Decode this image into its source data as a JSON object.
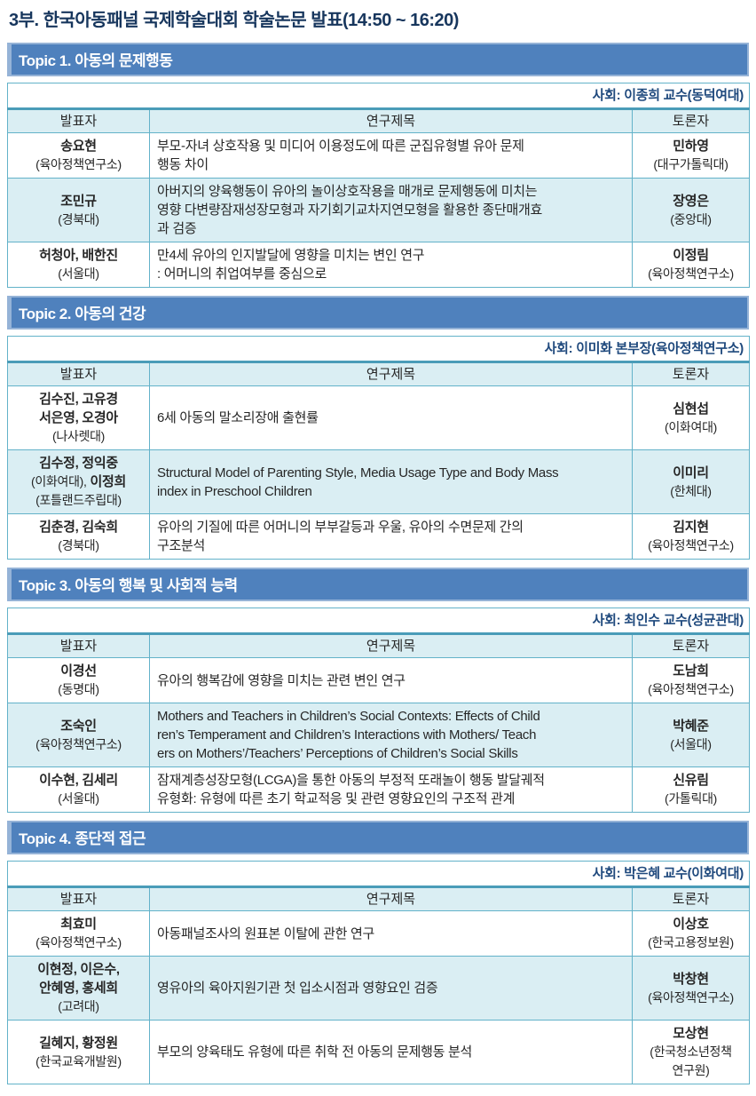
{
  "page_title": "3부. 한국아동패널 국제학술대회 학술논문 발표(14:50 ~ 16:20)",
  "colors": {
    "title_text": "#17365d",
    "topic_bar_bg": "#4f81bd",
    "topic_bar_border": "#95b3d7",
    "table_border": "#63b2c9",
    "thick_rule": "#4a9cb8",
    "band_bg": "#daeef3",
    "moderator_text": "#1f497d",
    "body_text": "#262626"
  },
  "columns": {
    "presenter": "발표자",
    "title": "연구제목",
    "discussant": "토론자"
  },
  "sections": [
    {
      "topic": "Topic 1. 아동의 문제행동",
      "moderator": "사회: 이종희 교수(동덕여대)",
      "rows": [
        {
          "presenter": [
            [
              {
                "t": "송요현",
                "b": true
              }
            ],
            [
              {
                "t": "(육아정책연구소)",
                "b": false
              }
            ]
          ],
          "title": "부모-자녀 상호작용 및 미디어 이용정도에 따른 군집유형별 유아 문제\n행동 차이",
          "discussant": [
            [
              {
                "t": "민하영",
                "b": true
              }
            ],
            [
              {
                "t": "(대구가톨릭대)",
                "b": false
              }
            ]
          ]
        },
        {
          "presenter": [
            [
              {
                "t": "조민규",
                "b": true
              }
            ],
            [
              {
                "t": "(경북대)",
                "b": false
              }
            ]
          ],
          "title": "아버지의 양육행동이 유아의 놀이상호작용을 매개로 문제행동에 미치는\n영향 다변량잠재성장모형과 자기회기교차지연모형을 활용한 종단매개효\n과 검증",
          "discussant": [
            [
              {
                "t": "장영은",
                "b": true
              }
            ],
            [
              {
                "t": "(중앙대)",
                "b": false
              }
            ]
          ]
        },
        {
          "presenter": [
            [
              {
                "t": "허청아, 배한진",
                "b": true
              }
            ],
            [
              {
                "t": "(서울대)",
                "b": false
              }
            ]
          ],
          "title": "만4세 유아의 인지발달에 영향을 미치는 변인 연구\n: 어머니의 취업여부를 중심으로",
          "discussant": [
            [
              {
                "t": "이정림",
                "b": true
              }
            ],
            [
              {
                "t": "(육아정책연구소)",
                "b": false
              }
            ]
          ]
        }
      ]
    },
    {
      "topic": "Topic 2. 아동의 건강",
      "moderator": "사회: 이미화 본부장(육아정책연구소)",
      "rows": [
        {
          "presenter": [
            [
              {
                "t": "김수진, 고유경",
                "b": true
              }
            ],
            [
              {
                "t": "서은영, 오경아",
                "b": true
              }
            ],
            [
              {
                "t": "(나사렛대)",
                "b": false
              }
            ]
          ],
          "title": "6세 아동의 말소리장애 출현률",
          "discussant": [
            [
              {
                "t": "심현섭",
                "b": true
              }
            ],
            [
              {
                "t": "(이화여대)",
                "b": false
              }
            ]
          ]
        },
        {
          "presenter": [
            [
              {
                "t": "김수정, 정익중",
                "b": true
              }
            ],
            [
              {
                "t": "(이화여대),",
                "b": false
              },
              {
                "t": " 이정희",
                "b": true
              }
            ],
            [
              {
                "t": "(포틀랜드주립대)",
                "b": false
              }
            ]
          ],
          "title": "Structural Model of Parenting Style, Media Usage Type and Body Mass\nindex in Preschool Children",
          "discussant": [
            [
              {
                "t": "이미리",
                "b": true
              }
            ],
            [
              {
                "t": "(한체대)",
                "b": false
              }
            ]
          ]
        },
        {
          "presenter": [
            [
              {
                "t": "김춘경, 김숙희",
                "b": true
              }
            ],
            [
              {
                "t": "(경북대)",
                "b": false
              }
            ]
          ],
          "title": "유아의 기질에 따른 어머니의 부부갈등과 우울, 유아의 수면문제 간의\n구조분석",
          "discussant": [
            [
              {
                "t": "김지현",
                "b": true
              }
            ],
            [
              {
                "t": "(육아정책연구소)",
                "b": false
              }
            ]
          ]
        }
      ]
    },
    {
      "topic": "Topic 3. 아동의 행복 및 사회적 능력",
      "moderator": "사회: 최인수 교수(성균관대)",
      "rows": [
        {
          "presenter": [
            [
              {
                "t": "이경선",
                "b": true
              }
            ],
            [
              {
                "t": "(동명대)",
                "b": false
              }
            ]
          ],
          "title": "유아의 행복감에 영향을 미치는 관련 변인 연구",
          "discussant": [
            [
              {
                "t": "도남희",
                "b": true
              }
            ],
            [
              {
                "t": "(육아정책연구소)",
                "b": false
              }
            ]
          ]
        },
        {
          "presenter": [
            [
              {
                "t": "조숙인",
                "b": true
              }
            ],
            [
              {
                "t": "(육아정책연구소)",
                "b": false
              }
            ]
          ],
          "title": "Mothers and Teachers in Children’s Social Contexts: Effects of Child\nren’s Temperament and Children’s Interactions with Mothers/ Teach\ners on Mothers’/Teachers’ Perceptions of Children’s Social Skills",
          "discussant": [
            [
              {
                "t": "박혜준",
                "b": true
              }
            ],
            [
              {
                "t": "(서울대)",
                "b": false
              }
            ]
          ]
        },
        {
          "presenter": [
            [
              {
                "t": "이수현, 김세리",
                "b": true
              }
            ],
            [
              {
                "t": "(서울대)",
                "b": false
              }
            ]
          ],
          "title": "잠재계층성장모형(LCGA)을 통한 아동의 부정적 또래놀이 행동 발달궤적\n유형화: 유형에 따른 초기 학교적응 및 관련 영향요인의 구조적 관계",
          "discussant": [
            [
              {
                "t": "신유림",
                "b": true
              }
            ],
            [
              {
                "t": "(가톨릭대)",
                "b": false
              }
            ]
          ]
        }
      ]
    },
    {
      "topic": "Topic 4. 종단적 접근",
      "moderator": "사회: 박은혜 교수(이화여대)",
      "rows": [
        {
          "presenter": [
            [
              {
                "t": "최효미",
                "b": true
              }
            ],
            [
              {
                "t": "(육아정책연구소)",
                "b": false
              }
            ]
          ],
          "title": "아동패널조사의 원표본 이탈에 관한 연구",
          "discussant": [
            [
              {
                "t": "이상호",
                "b": true
              }
            ],
            [
              {
                "t": "(한국고용정보원)",
                "b": false
              }
            ]
          ]
        },
        {
          "presenter": [
            [
              {
                "t": "이현정, 이은수,",
                "b": true
              }
            ],
            [
              {
                "t": "안혜영, 홍세희",
                "b": true
              }
            ],
            [
              {
                "t": "(고려대)",
                "b": false
              }
            ]
          ],
          "title": "영유아의 육아지원기관 첫 입소시점과 영향요인 검증",
          "discussant": [
            [
              {
                "t": "박창현",
                "b": true
              }
            ],
            [
              {
                "t": "(육아정책연구소)",
                "b": false
              }
            ]
          ]
        },
        {
          "presenter": [
            [
              {
                "t": "길혜지, 황정원",
                "b": true
              }
            ],
            [
              {
                "t": "(한국교육개발원)",
                "b": false
              }
            ]
          ],
          "title": "부모의 양육태도 유형에 따른 취학 전 아동의 문제행동 분석",
          "discussant": [
            [
              {
                "t": "모상현",
                "b": true
              }
            ],
            [
              {
                "t": "(한국청소년정책",
                "b": false
              }
            ],
            [
              {
                "t": "연구원)",
                "b": false
              }
            ]
          ]
        }
      ]
    }
  ]
}
